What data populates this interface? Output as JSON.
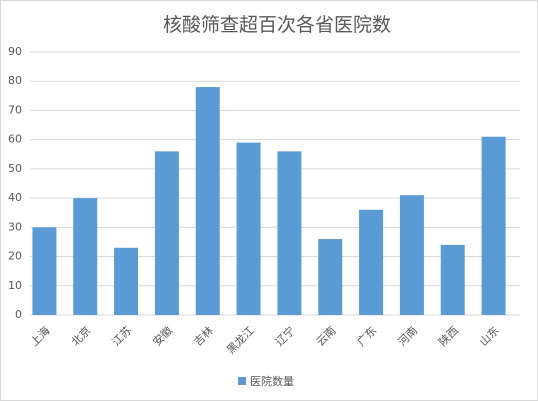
{
  "chart_data": {
    "type": "bar",
    "title": "核酸筛查超百次各省医院数",
    "categories": [
      "上海",
      "北京",
      "江苏",
      "安徽",
      "吉林",
      "黑龙江",
      "辽宁",
      "云南",
      "广东",
      "河南",
      "陕西",
      "山东"
    ],
    "series": [
      {
        "name": "医院数量",
        "color": "#5b9bd5",
        "values": [
          30,
          40,
          23,
          56,
          78,
          59,
          56,
          26,
          36,
          41,
          24,
          61
        ]
      }
    ],
    "ylim": [
      0,
      90
    ],
    "yticks": [
      0,
      10,
      20,
      30,
      40,
      50,
      60,
      70,
      80,
      90
    ],
    "grid": true,
    "legend": "bottom"
  }
}
